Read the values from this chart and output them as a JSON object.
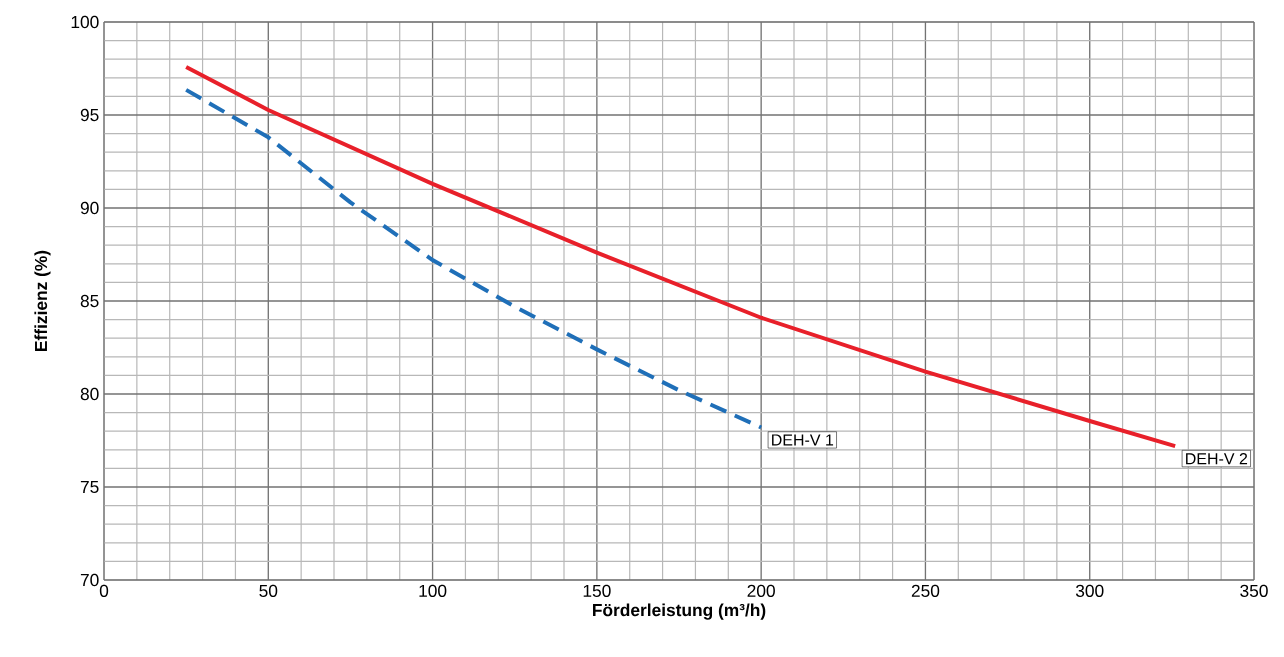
{
  "chart_data": {
    "type": "line",
    "xlabel": "Förderleistung (m³/h)",
    "ylabel": "Effizienz (%)",
    "xlim": [
      0,
      350
    ],
    "ylim": [
      70,
      100
    ],
    "xticks": [
      0,
      50,
      100,
      150,
      200,
      250,
      300,
      350
    ],
    "yticks": [
      70,
      75,
      80,
      85,
      90,
      95,
      100
    ],
    "grid": true,
    "legend": false,
    "marker": "none",
    "series": [
      {
        "name": "DEH-V 1",
        "color": "#1f6fb8",
        "line_style": "dashed",
        "x": [
          25,
          50,
          75,
          100,
          125,
          150,
          175,
          200
        ],
        "values": [
          96.35,
          93.8,
          90.3,
          87.2,
          84.7,
          82.4,
          80.2,
          78.2
        ]
      },
      {
        "name": "DEH-V 2",
        "color": "#e8202a",
        "line_style": "solid",
        "x": [
          25,
          50,
          100,
          150,
          200,
          250,
          300,
          326
        ],
        "values": [
          97.58,
          95.27,
          91.3,
          87.6,
          84.1,
          81.2,
          78.55,
          77.2
        ]
      }
    ]
  }
}
